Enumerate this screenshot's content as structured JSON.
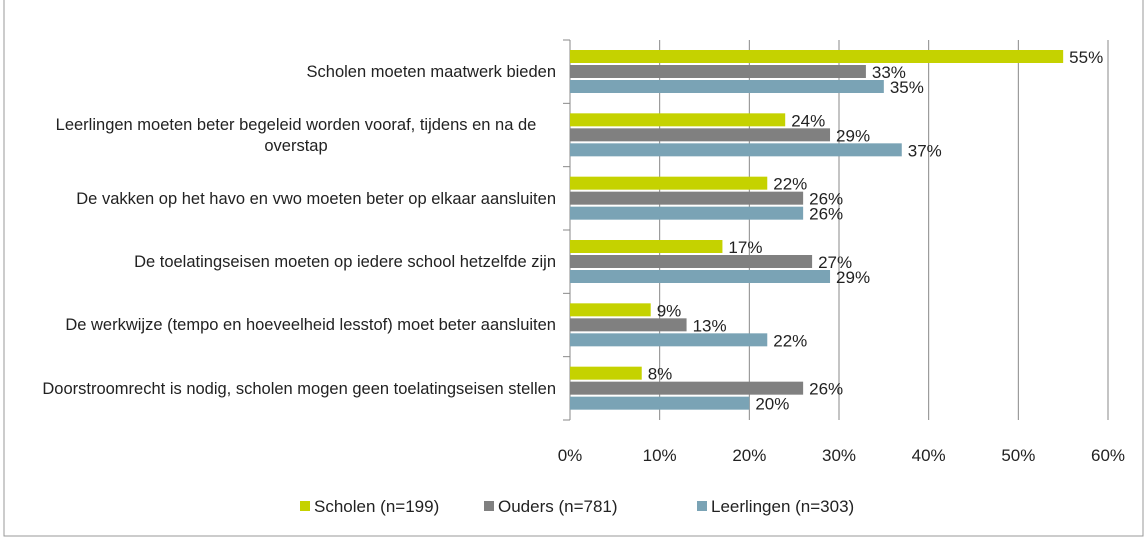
{
  "chart_data": {
    "type": "barh",
    "categories": [
      "Scholen moeten maatwerk bieden",
      "Leerlingen moeten beter begeleid worden vooraf, tijdens en na de overstap",
      "De vakken op het havo en vwo moeten beter op elkaar aansluiten",
      "De toelatingseisen moeten op iedere school hetzelfde zijn",
      "De werkwijze (tempo en hoeveelheid lesstof) moet beter aansluiten",
      "Doorstroomrecht is nodig, scholen mogen geen toelatingseisen stellen"
    ],
    "series": [
      {
        "name": "Scholen (n=199)",
        "color": "#c5d200",
        "values": [
          55,
          24,
          22,
          17,
          9,
          8
        ],
        "value_labels": [
          "55%",
          "24%",
          "22%",
          "17%",
          "9%",
          "8%"
        ]
      },
      {
        "name": "Ouders (n=781)",
        "color": "#808080",
        "values": [
          33,
          29,
          26,
          27,
          13,
          26
        ],
        "value_labels": [
          "33%",
          "29%",
          "26%",
          "27%",
          "13%",
          "26%"
        ]
      },
      {
        "name": "Leerlingen (n=303)",
        "color": "#7aa3b5",
        "values": [
          35,
          37,
          26,
          29,
          22,
          20
        ],
        "value_labels": [
          "35%",
          "37%",
          "26%",
          "29%",
          "22%",
          "20%"
        ]
      }
    ],
    "xlim": [
      0,
      60
    ],
    "xticks": [
      {
        "value": 0,
        "label": "0%"
      },
      {
        "value": 10,
        "label": "10%"
      },
      {
        "value": 20,
        "label": "20%"
      },
      {
        "value": 30,
        "label": "30%"
      },
      {
        "value": 40,
        "label": "40%"
      },
      {
        "value": 50,
        "label": "50%"
      },
      {
        "value": 60,
        "label": "60%"
      }
    ],
    "grid": true,
    "legend": "bottom"
  }
}
